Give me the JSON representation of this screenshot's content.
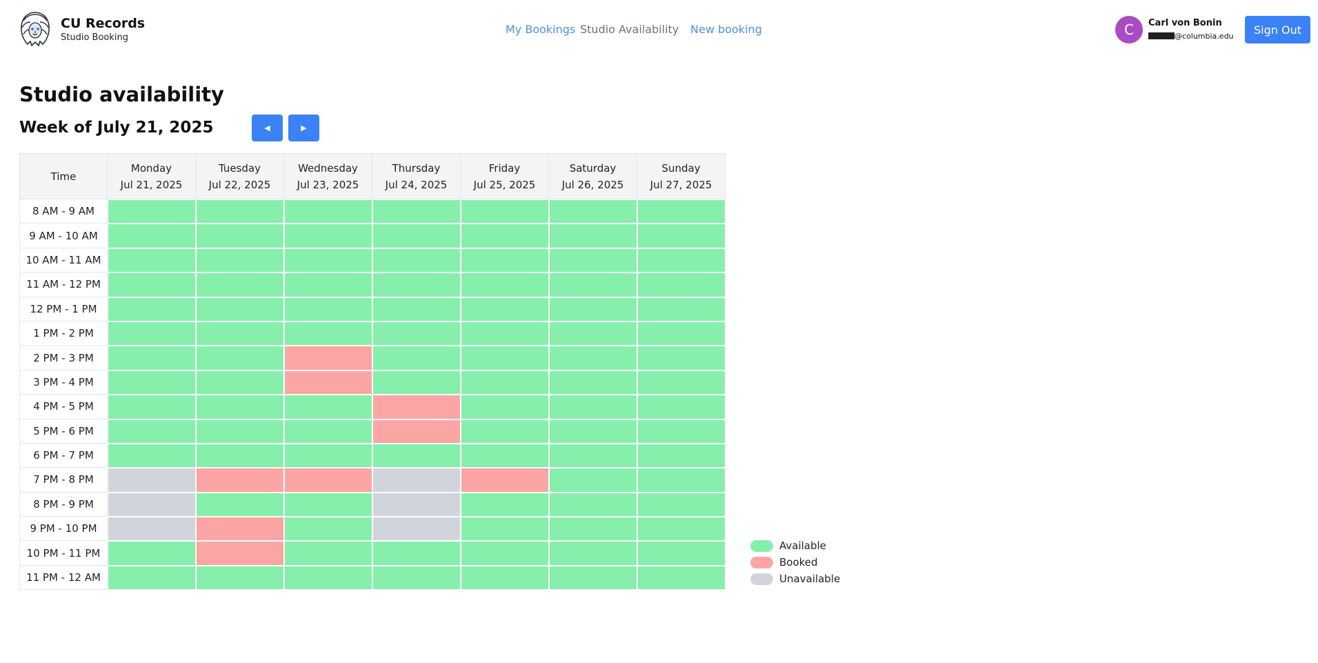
{
  "brand": {
    "title": "CU Records",
    "subtitle": "Studio Booking"
  },
  "nav": {
    "my_bookings": "My Bookings",
    "studio_availability": "Studio Availability",
    "new_booking": "New booking"
  },
  "user": {
    "initial": "C",
    "name": "Carl von Bonin",
    "email_domain": "@columbia.edu"
  },
  "signout_label": "Sign Out",
  "page_title": "Studio availability",
  "week_title": "Week of July 21, 2025",
  "prev_label": "◀",
  "next_label": "▶",
  "colors": {
    "available": "#86efac",
    "booked": "#fca5a5",
    "unavailable": "#d1d5db",
    "accent": "#3b82f6"
  },
  "grid": {
    "time_header": "Time",
    "days": [
      {
        "name": "Monday",
        "date": "Jul 21, 2025"
      },
      {
        "name": "Tuesday",
        "date": "Jul 22, 2025"
      },
      {
        "name": "Wednesday",
        "date": "Jul 23, 2025"
      },
      {
        "name": "Thursday",
        "date": "Jul 24, 2025"
      },
      {
        "name": "Friday",
        "date": "Jul 25, 2025"
      },
      {
        "name": "Saturday",
        "date": "Jul 26, 2025"
      },
      {
        "name": "Sunday",
        "date": "Jul 27, 2025"
      }
    ],
    "rows": [
      {
        "time": "8 AM - 9 AM",
        "slots": [
          "available",
          "available",
          "available",
          "available",
          "available",
          "available",
          "available"
        ]
      },
      {
        "time": "9 AM - 10 AM",
        "slots": [
          "available",
          "available",
          "available",
          "available",
          "available",
          "available",
          "available"
        ]
      },
      {
        "time": "10 AM - 11 AM",
        "slots": [
          "available",
          "available",
          "available",
          "available",
          "available",
          "available",
          "available"
        ]
      },
      {
        "time": "11 AM - 12 PM",
        "slots": [
          "available",
          "available",
          "available",
          "available",
          "available",
          "available",
          "available"
        ]
      },
      {
        "time": "12 PM - 1 PM",
        "slots": [
          "available",
          "available",
          "available",
          "available",
          "available",
          "available",
          "available"
        ]
      },
      {
        "time": "1 PM - 2 PM",
        "slots": [
          "available",
          "available",
          "available",
          "available",
          "available",
          "available",
          "available"
        ]
      },
      {
        "time": "2 PM - 3 PM",
        "slots": [
          "available",
          "available",
          "booked",
          "available",
          "available",
          "available",
          "available"
        ]
      },
      {
        "time": "3 PM - 4 PM",
        "slots": [
          "available",
          "available",
          "booked",
          "available",
          "available",
          "available",
          "available"
        ]
      },
      {
        "time": "4 PM - 5 PM",
        "slots": [
          "available",
          "available",
          "available",
          "booked",
          "available",
          "available",
          "available"
        ]
      },
      {
        "time": "5 PM - 6 PM",
        "slots": [
          "available",
          "available",
          "available",
          "booked",
          "available",
          "available",
          "available"
        ]
      },
      {
        "time": "6 PM - 7 PM",
        "slots": [
          "available",
          "available",
          "available",
          "available",
          "available",
          "available",
          "available"
        ]
      },
      {
        "time": "7 PM - 8 PM",
        "slots": [
          "unavailable",
          "booked",
          "booked",
          "unavailable",
          "booked",
          "available",
          "available"
        ]
      },
      {
        "time": "8 PM - 9 PM",
        "slots": [
          "unavailable",
          "available",
          "available",
          "unavailable",
          "available",
          "available",
          "available"
        ]
      },
      {
        "time": "9 PM - 10 PM",
        "slots": [
          "unavailable",
          "booked",
          "available",
          "unavailable",
          "available",
          "available",
          "available"
        ]
      },
      {
        "time": "10 PM - 11 PM",
        "slots": [
          "available",
          "booked",
          "available",
          "available",
          "available",
          "available",
          "available"
        ]
      },
      {
        "time": "11 PM - 12 AM",
        "slots": [
          "available",
          "available",
          "available",
          "available",
          "available",
          "available",
          "available"
        ]
      }
    ]
  },
  "legend": [
    {
      "key": "available",
      "label": "Available"
    },
    {
      "key": "booked",
      "label": "Booked"
    },
    {
      "key": "unavailable",
      "label": "Unavailable"
    }
  ]
}
